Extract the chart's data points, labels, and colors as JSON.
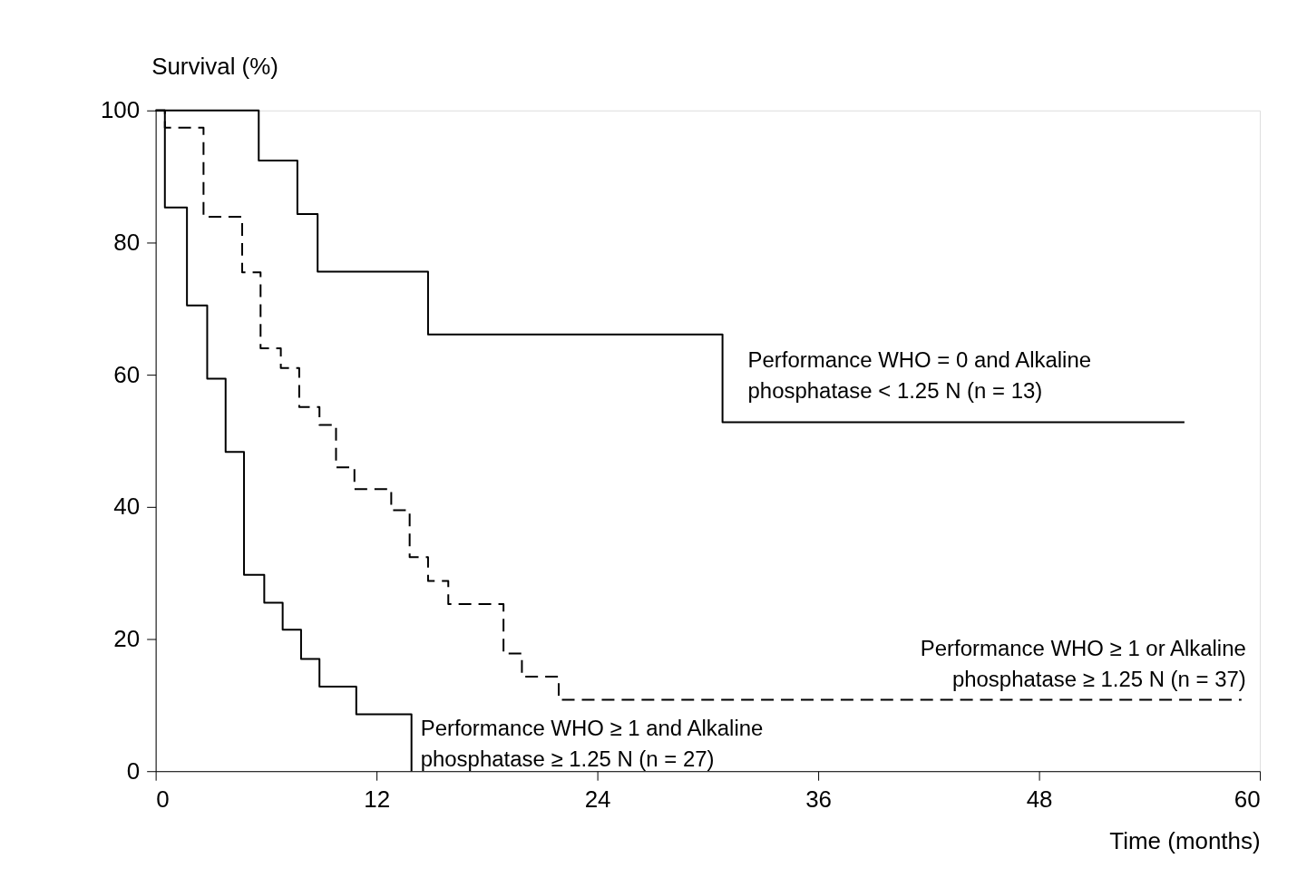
{
  "chart_data": {
    "type": "step",
    "xlabel": "Time (months)",
    "ylabel": "Survival (%)",
    "xlim": [
      0,
      60
    ],
    "xticks": [
      0,
      12,
      24,
      36,
      48,
      60
    ],
    "ylim": [
      0,
      100
    ],
    "yticks": [
      0,
      20,
      40,
      60,
      80,
      100
    ],
    "grid": false,
    "legend": false,
    "marker": "none",
    "series": [
      {
        "name": "Performance WHO = 0 and Alkaline\nphosphatase < 1.25 N (n = 13)",
        "color": "#000000",
        "line_style": "solid",
        "x": [
          0,
          5.6,
          7.7,
          8.8,
          14.8,
          30.8,
          55.9
        ],
        "values": [
          100,
          92.4,
          84.3,
          75.6,
          66.1,
          52.8,
          52.8
        ]
      },
      {
        "name": "Performance WHO ≥ 1 or Alkaline\nphosphatase ≥ 1.25 N (n = 37)",
        "color": "#000000",
        "line_style": "dashed",
        "x": [
          0,
          0.5,
          2.6,
          4.7,
          5.7,
          6.8,
          7.8,
          8.9,
          9.8,
          10.8,
          12.8,
          13.8,
          14.8,
          15.9,
          18.9,
          19.9,
          21.9,
          59
        ],
        "values": [
          100,
          97.4,
          83.9,
          75.5,
          64,
          61,
          55.1,
          52.4,
          46,
          42.7,
          39.5,
          32.4,
          28.8,
          25.3,
          17.8,
          14.3,
          10.8,
          10.8
        ]
      },
      {
        "name": "Performance WHO ≥ 1 and Alkaline\nphosphatase ≥ 1.25 N (n = 27)",
        "color": "#000000",
        "line_style": "solid",
        "x": [
          0,
          0.5,
          1.7,
          2.8,
          3.8,
          4.8,
          5.9,
          6.9,
          7.9,
          8.9,
          10.9,
          13.9
        ],
        "values": [
          100,
          85.3,
          70.5,
          59.4,
          48.3,
          29.7,
          25.5,
          21.4,
          17,
          12.8,
          8.6,
          0
        ]
      }
    ]
  }
}
